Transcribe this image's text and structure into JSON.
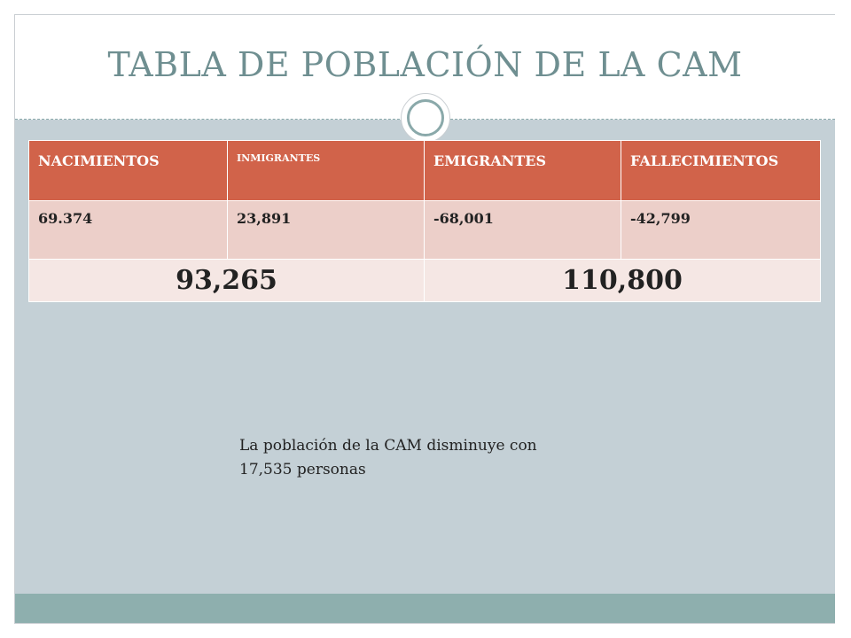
{
  "slide": {
    "title": "TABLA DE POBLACIÓN DE LA CAM",
    "colors": {
      "title": "#6f8f91",
      "header_fill": "#d1634a",
      "row_fill": "#eccfc9",
      "total_fill": "#f5e7e4",
      "content_bg": "#c4d0d6",
      "footer_band": "#8eafae"
    },
    "ornament_icon": "ring-icon"
  },
  "table": {
    "headers": [
      "NACIMIENTOS",
      "INMIGRANTES",
      "EMIGRANTES",
      "FALLECIMIENTOS"
    ],
    "values": [
      "69.374",
      "23,891",
      "-68,001",
      "-42,799"
    ],
    "totals": [
      "93,265",
      "110,800"
    ]
  },
  "note": {
    "line1": "La población de la CAM disminuye con",
    "line2": "17,535 personas"
  }
}
